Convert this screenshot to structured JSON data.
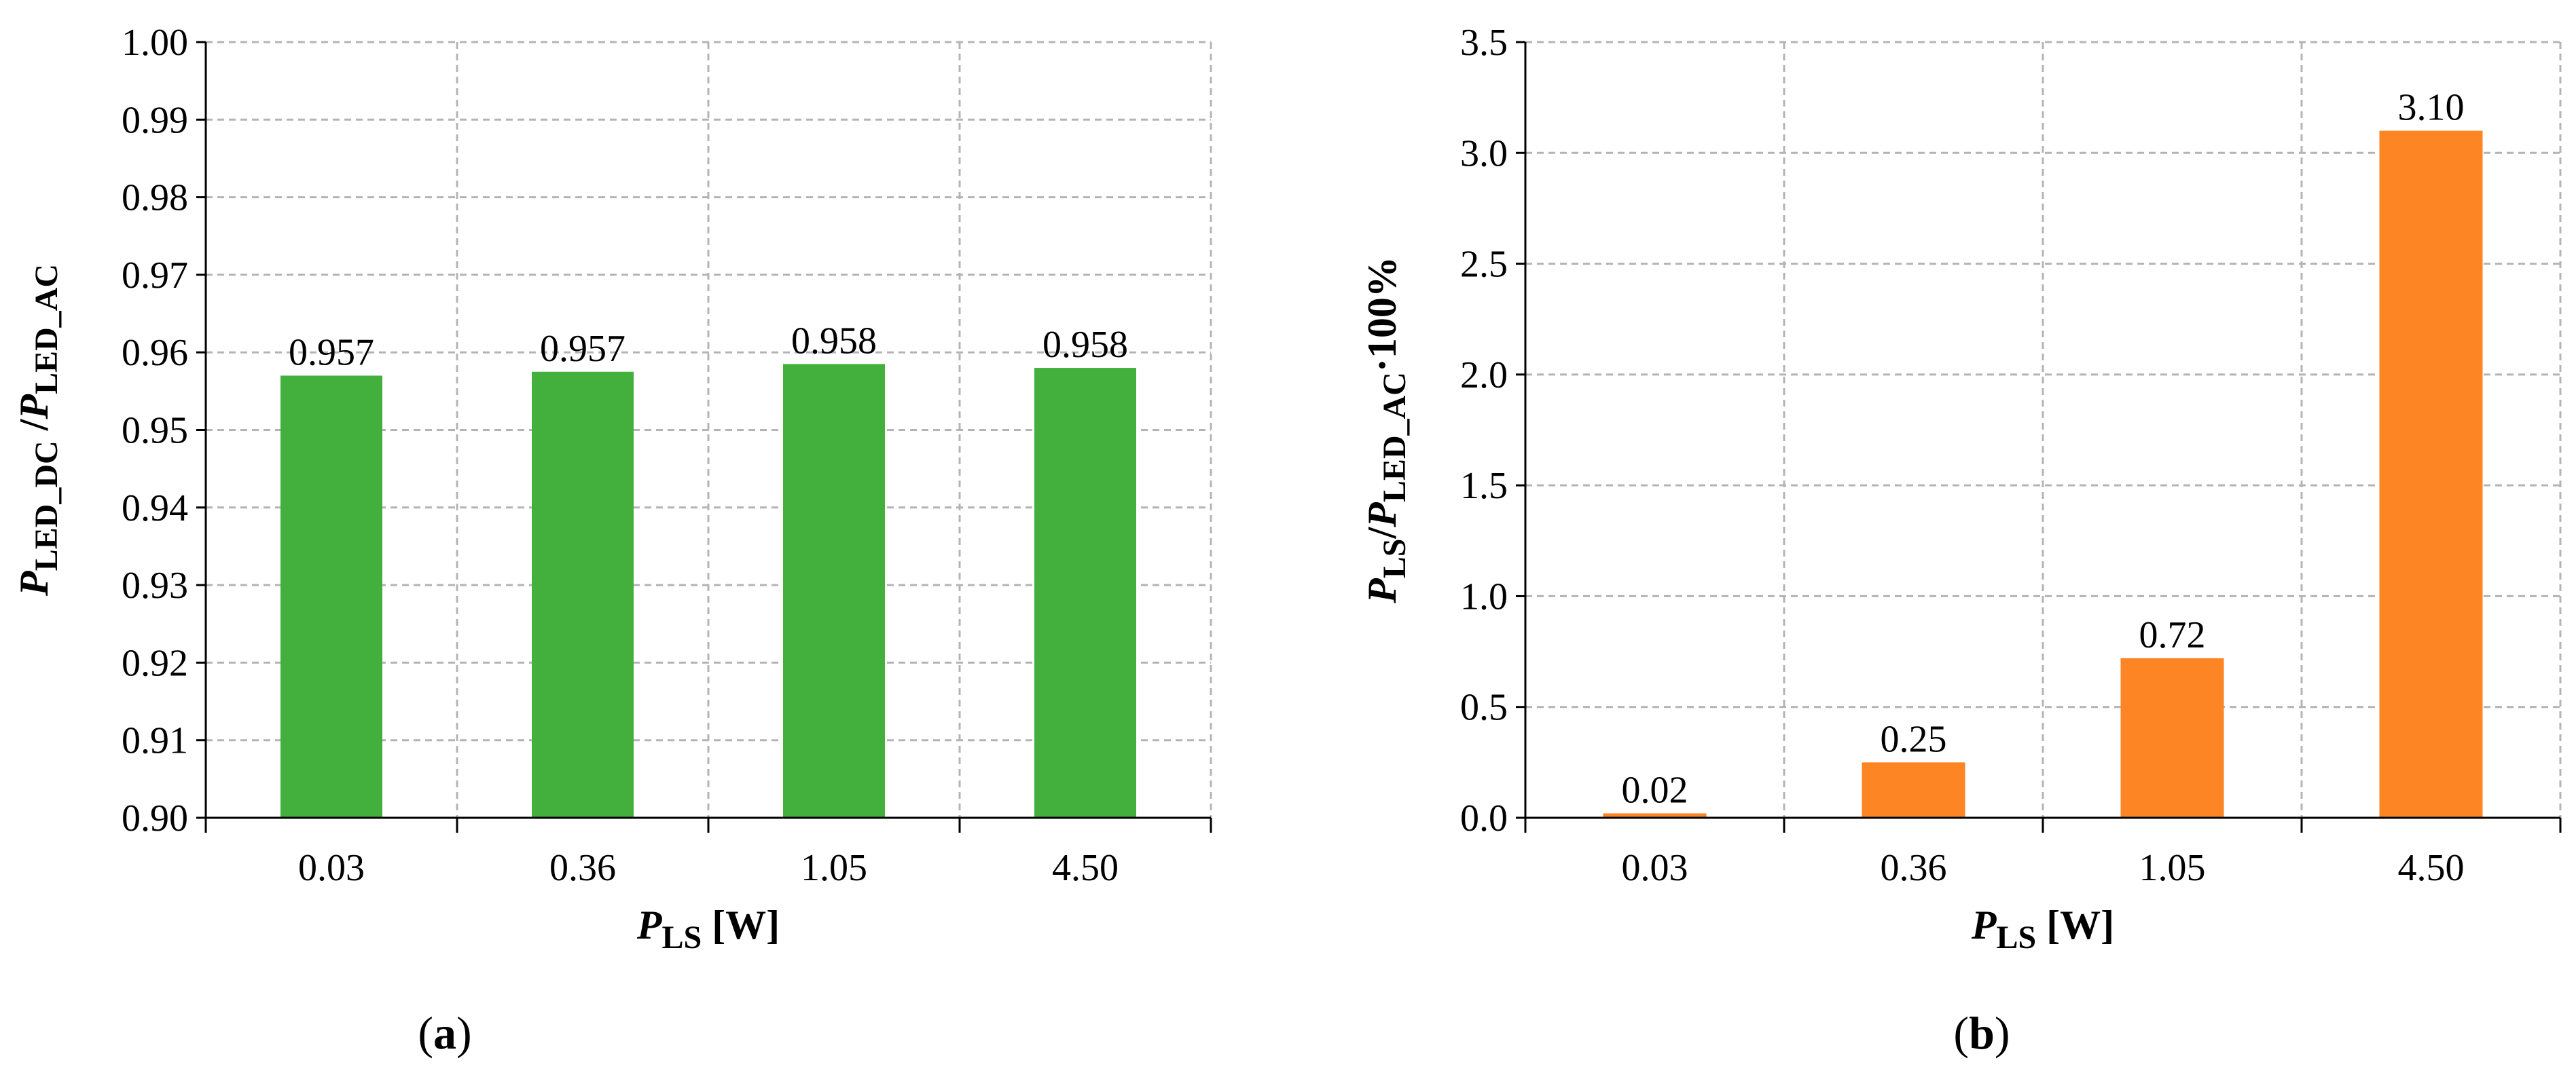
{
  "chart_data": [
    {
      "type": "bar",
      "panel_label": "a",
      "categories": [
        "0.03",
        "0.36",
        "1.05",
        "4.50"
      ],
      "values": [
        0.957,
        0.9575,
        0.9585,
        0.958
      ],
      "data_labels": [
        "0.957",
        "0.957",
        "0.958",
        "0.958"
      ],
      "yticks": [
        "0.90",
        "0.91",
        "0.92",
        "0.93",
        "0.94",
        "0.95",
        "0.96",
        "0.97",
        "0.98",
        "0.99",
        "1.00"
      ],
      "ylim": [
        0.9,
        1.0
      ],
      "ylabel": {
        "main": "P",
        "sub1": "LED_DC",
        "sep": " /",
        "main2": "P",
        "sub2": "LED_AC"
      },
      "xlabel": {
        "main": "P",
        "sub": "LS",
        "unit": " [W]"
      },
      "bar_color": "#43b03d",
      "grid": true
    },
    {
      "type": "bar",
      "panel_label": "b",
      "categories": [
        "0.03",
        "0.36",
        "1.05",
        "4.50"
      ],
      "values": [
        0.02,
        0.25,
        0.72,
        3.1
      ],
      "data_labels": [
        "0.02",
        "0.25",
        "0.72",
        "3.10"
      ],
      "yticks": [
        "0.0",
        "0.5",
        "1.0",
        "1.5",
        "2.0",
        "2.5",
        "3.0",
        "3.5"
      ],
      "ylim": [
        0,
        3.5
      ],
      "ylabel": {
        "main": "P",
        "sub1": "LS",
        "sep": "/",
        "main2": "P",
        "sub2": "LED_AC",
        "suffix": "·100%"
      },
      "xlabel": {
        "main": "P",
        "sub": "LS",
        "unit": " [W]"
      },
      "bar_color": "#fd8524",
      "grid": true
    }
  ],
  "colors": {
    "grid": "#b4b4b4",
    "axis": "#000000"
  }
}
